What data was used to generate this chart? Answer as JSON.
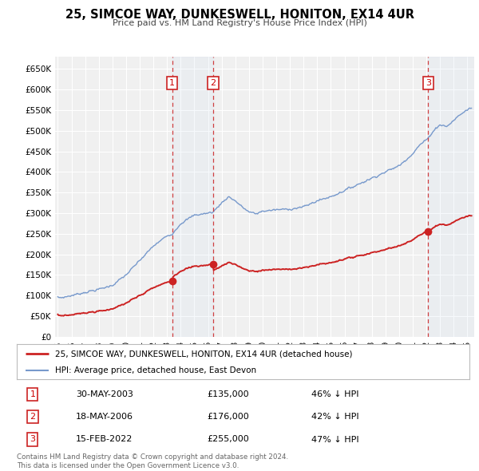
{
  "title": "25, SIMCOE WAY, DUNKESWELL, HONITON, EX14 4UR",
  "subtitle": "Price paid vs. HM Land Registry's House Price Index (HPI)",
  "background_color": "#ffffff",
  "plot_bg_color": "#f0f0f0",
  "grid_color": "#ffffff",
  "hpi_color": "#7799cc",
  "price_color": "#cc2222",
  "shade_color": "#d0e0f0",
  "transactions": [
    {
      "num": 1,
      "date_label": "30-MAY-2003",
      "date_x": 2003.38,
      "price": 135000,
      "pct": "46% ↓ HPI"
    },
    {
      "num": 2,
      "date_label": "18-MAY-2006",
      "date_x": 2006.38,
      "price": 176000,
      "pct": "42% ↓ HPI"
    },
    {
      "num": 3,
      "date_label": "15-FEB-2022",
      "date_x": 2022.12,
      "price": 255000,
      "pct": "47% ↓ HPI"
    }
  ],
  "legend_entries": [
    "25, SIMCOE WAY, DUNKESWELL, HONITON, EX14 4UR (detached house)",
    "HPI: Average price, detached house, East Devon"
  ],
  "footer_line1": "Contains HM Land Registry data © Crown copyright and database right 2024.",
  "footer_line2": "This data is licensed under the Open Government Licence v3.0.",
  "ylim": [
    0,
    680000
  ],
  "yticks": [
    0,
    50000,
    100000,
    150000,
    200000,
    250000,
    300000,
    350000,
    400000,
    450000,
    500000,
    550000,
    600000,
    650000
  ],
  "xmin": 1994.8,
  "xmax": 2025.5,
  "xticks": [
    1995,
    1996,
    1997,
    1998,
    1999,
    2000,
    2001,
    2002,
    2003,
    2004,
    2005,
    2006,
    2007,
    2008,
    2009,
    2010,
    2011,
    2012,
    2013,
    2014,
    2015,
    2016,
    2017,
    2018,
    2019,
    2020,
    2021,
    2022,
    2023,
    2024,
    2025
  ]
}
